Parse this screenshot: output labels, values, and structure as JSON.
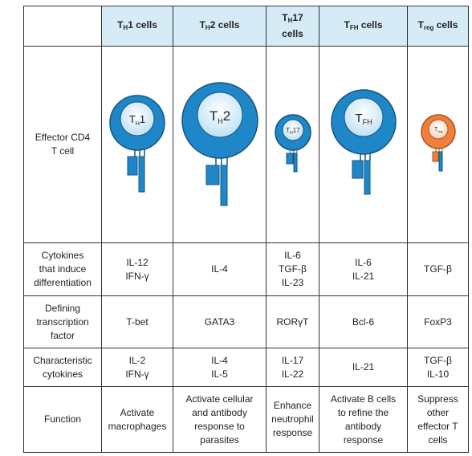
{
  "columns": [
    {
      "main": "T",
      "sub": "H",
      "rest": "1 cells",
      "inner_main": "T",
      "inner_sub": "H",
      "inner_rest": "1"
    },
    {
      "main": "T",
      "sub": "H",
      "rest": "2 cells",
      "inner_main": "T",
      "inner_sub": "H",
      "inner_rest": "2"
    },
    {
      "main": "T",
      "sub": "H",
      "rest": "17",
      "rest2": "cells",
      "inner_main": "T",
      "inner_sub": "H",
      "inner_rest": "17"
    },
    {
      "main": "T",
      "sub": "FH",
      "rest": " cells",
      "inner_main": "T",
      "inner_sub": "FH",
      "inner_rest": ""
    },
    {
      "main": "T",
      "sub": "reg",
      "rest": " cells",
      "inner_main": "T",
      "inner_sub": "reg",
      "inner_rest": ""
    }
  ],
  "rows": {
    "effector": {
      "label": [
        "Effector CD4",
        "T cell"
      ]
    },
    "cytokines_induce": {
      "label": [
        "Cytokines",
        "that induce",
        "differentiation"
      ],
      "cells": [
        [
          "IL-12",
          "IFN-γ"
        ],
        [
          "IL-4"
        ],
        [
          "IL-6",
          "TGF-β",
          "IL-23"
        ],
        [
          "IL-6",
          "IL-21"
        ],
        [
          "TGF-β"
        ]
      ]
    },
    "transcription": {
      "label": [
        "Defining",
        "transcription",
        "factor"
      ],
      "cells": [
        [
          "T-bet"
        ],
        [
          "GATA3"
        ],
        [
          "RORγT"
        ],
        [
          "Bcl-6"
        ],
        [
          "FoxP3"
        ]
      ]
    },
    "characteristic": {
      "label": [
        "Characteristic",
        "cytokines"
      ],
      "cells": [
        [
          "IL-2",
          "IFN-γ"
        ],
        [
          "IL-4",
          "IL-5"
        ],
        [
          "IL-17",
          "IL-22"
        ],
        [
          "IL-21"
        ],
        [
          "TGF-β",
          "IL-10"
        ]
      ]
    },
    "function": {
      "label": [
        "Function"
      ],
      "cells": [
        [
          "Activate",
          "macrophages"
        ],
        [
          "Activate cellular",
          "and antibody",
          "response to",
          "parasites"
        ],
        [
          "Enhance",
          "neutrophil",
          "response"
        ],
        [
          "Activate B cells",
          "to refine the",
          "antibody",
          "response"
        ],
        [
          "Suppress",
          "other",
          "effector T",
          "cells"
        ]
      ]
    }
  },
  "colors": {
    "header_bg": "#d5ecf7",
    "cell_blue": "#1f86c8",
    "cell_blue_dark": "#15679c",
    "nucleus_light": "#ddeffa",
    "treg_orange": "#f07f3c",
    "treg_nucleus": "#fde3d3"
  }
}
